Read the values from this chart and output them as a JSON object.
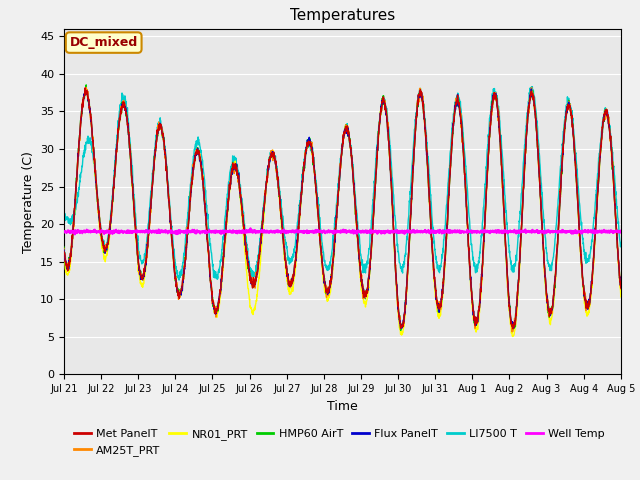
{
  "title": "Temperatures",
  "xlabel": "Time",
  "ylabel": "Temperature (C)",
  "annotation_text": "DC_mixed",
  "annotation_bg": "#ffffcc",
  "annotation_border": "#cc8800",
  "annotation_text_color": "#990000",
  "ylim": [
    0,
    46
  ],
  "yticks": [
    0,
    5,
    10,
    15,
    20,
    25,
    30,
    35,
    40,
    45
  ],
  "bg_color": "#e8e8e8",
  "fig_bg": "#f0f0f0",
  "well_temp": 19.0,
  "series_colors": {
    "Met PanelT": "#cc0000",
    "AM25T_PRT": "#ff8800",
    "NR01_PRT": "#ffff00",
    "HMP60 AirT": "#00cc00",
    "Flux PanelT": "#0000cc",
    "LI7500 T": "#00cccc",
    "Well Temp": "#ff00ff"
  },
  "n_days": 15,
  "day_maxima": [
    40,
    36,
    36,
    31,
    29,
    27,
    31,
    31,
    34,
    38,
    37,
    36,
    38,
    37,
    35
  ],
  "day_minima": [
    14,
    17,
    13,
    11,
    8,
    12,
    12,
    11,
    11,
    6,
    9,
    7,
    6,
    8,
    9
  ],
  "li7500_maxima": [
    21,
    37,
    37,
    31,
    31,
    27,
    31,
    31,
    34,
    38,
    37,
    37,
    38,
    38,
    35
  ],
  "li7500_minima": [
    21,
    17,
    15,
    13,
    13,
    13,
    15,
    14,
    14,
    14,
    14,
    14,
    14,
    14,
    15
  ]
}
